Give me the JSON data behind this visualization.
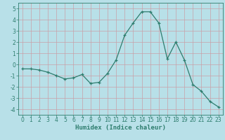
{
  "x": [
    0,
    1,
    2,
    3,
    4,
    5,
    6,
    7,
    8,
    9,
    10,
    11,
    12,
    13,
    14,
    15,
    16,
    17,
    18,
    19,
    20,
    21,
    22,
    23
  ],
  "y": [
    -0.4,
    -0.4,
    -0.5,
    -0.7,
    -1.0,
    -1.3,
    -1.2,
    -0.9,
    -1.7,
    -1.6,
    -0.8,
    0.4,
    2.6,
    3.7,
    4.7,
    4.7,
    3.7,
    0.5,
    2.0,
    0.4,
    -1.8,
    -2.4,
    -3.3,
    -3.8
  ],
  "line_color": "#2e7d6e",
  "marker": "P",
  "marker_size": 3,
  "bg_color": "#b8e0e8",
  "grid_color": "#c8a0a8",
  "xlabel": "Humidex (Indice chaleur)",
  "xlim": [
    -0.5,
    23.5
  ],
  "ylim": [
    -4.5,
    5.5
  ],
  "yticks": [
    -4,
    -3,
    -2,
    -1,
    0,
    1,
    2,
    3,
    4,
    5
  ],
  "xticks": [
    0,
    1,
    2,
    3,
    4,
    5,
    6,
    7,
    8,
    9,
    10,
    11,
    12,
    13,
    14,
    15,
    16,
    17,
    18,
    19,
    20,
    21,
    22,
    23
  ],
  "tick_fontsize": 5.5,
  "xlabel_fontsize": 6.5
}
